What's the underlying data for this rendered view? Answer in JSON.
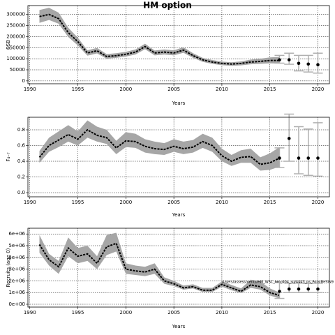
{
  "title": "HM option",
  "chart_data": [
    {
      "type": "line",
      "y_label": "SSB",
      "x_label": "Years",
      "x": [
        1991,
        1992,
        1993,
        1994,
        1995,
        1996,
        1997,
        1998,
        1999,
        2000,
        2001,
        2002,
        2003,
        2004,
        2005,
        2006,
        2007,
        2008,
        2009,
        2010,
        2011,
        2012,
        2013,
        2014,
        2015,
        2016
      ],
      "values": [
        290500,
        300000,
        281000,
        218000,
        177000,
        126000,
        136000,
        110000,
        114000,
        120000,
        130000,
        155000,
        126000,
        130000,
        126000,
        139000,
        114000,
        95000,
        85000,
        79000,
        76000,
        79000,
        85000,
        88000,
        92000,
        92000
      ],
      "lower": [
        262000,
        275000,
        258000,
        198000,
        160000,
        114000,
        124000,
        100000,
        104000,
        110000,
        119000,
        143000,
        115000,
        119000,
        115000,
        127000,
        104000,
        86000,
        77000,
        71000,
        68000,
        70000,
        75000,
        77000,
        79000,
        78000
      ],
      "upper": [
        320000,
        330000,
        308000,
        240000,
        195000,
        138000,
        149000,
        121000,
        125000,
        131000,
        142000,
        168000,
        137000,
        142000,
        138000,
        152000,
        125000,
        104000,
        94000,
        87000,
        84000,
        88000,
        96000,
        100000,
        106000,
        108000
      ],
      "projection_x": [
        2016,
        2017,
        2018,
        2019,
        2020
      ],
      "projection_values": [
        95000,
        95000,
        79000,
        76000,
        73000
      ],
      "projection_lower": [
        80000,
        75000,
        45000,
        40000,
        35000
      ],
      "projection_upper": [
        115000,
        125000,
        115000,
        115000,
        125000
      ],
      "color": "#000000",
      "band_color": "#a6a6a6",
      "error_color": "#b0b0b0",
      "xlim": [
        1989.8,
        2021.2
      ],
      "ylim": [
        -13000,
        340000
      ],
      "xticks": [
        1990,
        1995,
        2000,
        2005,
        2010,
        2015,
        2020
      ],
      "yticks": [
        0,
        50000,
        100000,
        150000,
        200000,
        250000,
        300000
      ],
      "grid": true
    },
    {
      "type": "line",
      "y_label": "F₄₋₇",
      "x_label": "Years",
      "x": [
        1991,
        1992,
        1993,
        1994,
        1995,
        1996,
        1997,
        1998,
        1999,
        2000,
        2001,
        2002,
        2003,
        2004,
        2005,
        2006,
        2007,
        2008,
        2009,
        2010,
        2011,
        2012,
        2013,
        2014,
        2015,
        2016
      ],
      "values": [
        0.45,
        0.6,
        0.67,
        0.74,
        0.68,
        0.8,
        0.73,
        0.7,
        0.57,
        0.66,
        0.65,
        0.59,
        0.56,
        0.55,
        0.59,
        0.56,
        0.58,
        0.65,
        0.6,
        0.47,
        0.4,
        0.45,
        0.46,
        0.36,
        0.38,
        0.44
      ],
      "lower": [
        0.38,
        0.52,
        0.58,
        0.65,
        0.6,
        0.7,
        0.65,
        0.62,
        0.49,
        0.58,
        0.57,
        0.51,
        0.49,
        0.48,
        0.52,
        0.49,
        0.51,
        0.57,
        0.52,
        0.4,
        0.34,
        0.38,
        0.38,
        0.28,
        0.29,
        0.33
      ],
      "upper": [
        0.53,
        0.7,
        0.78,
        0.86,
        0.78,
        0.92,
        0.84,
        0.8,
        0.66,
        0.77,
        0.75,
        0.68,
        0.65,
        0.63,
        0.68,
        0.65,
        0.67,
        0.75,
        0.7,
        0.56,
        0.48,
        0.54,
        0.56,
        0.45,
        0.5,
        0.58
      ],
      "projection_x": [
        2016,
        2017,
        2018,
        2019,
        2020
      ],
      "projection_values": [
        0.44,
        0.69,
        0.44,
        0.44,
        0.44
      ],
      "projection_lower": [
        0.32,
        0.4,
        0.24,
        0.22,
        0.21
      ],
      "projection_upper": [
        0.57,
        1.0,
        0.84,
        0.81,
        0.89
      ],
      "color": "#000000",
      "band_color": "#a6a6a6",
      "error_color": "#b0b0b0",
      "xlim": [
        1989.8,
        2021.2
      ],
      "ylim": [
        -0.053,
        0.96
      ],
      "xticks": [
        1990,
        1995,
        2000,
        2005,
        2010,
        2015,
        2020
      ],
      "yticks": [
        {
          "value": 0,
          "label": "0.0"
        },
        0.2,
        0.4,
        0.6,
        0.8
      ],
      "grid": true
    },
    {
      "type": "line",
      "y_label": "Recruits (age 0)",
      "x_label": "Years",
      "annotation": "/Users/assessments/HM_WSC_hm_004_sq/4443_ps_PolarBeSIN9",
      "x": [
        1991,
        1992,
        1993,
        1994,
        1995,
        1996,
        1997,
        1998,
        1999,
        2000,
        2001,
        2002,
        2003,
        2004,
        2005,
        2006,
        2007,
        2008,
        2009,
        2010,
        2011,
        2012,
        2013,
        2014,
        2015,
        2016
      ],
      "values": [
        5100000,
        3800000,
        3200000,
        4800000,
        4100000,
        4300000,
        3500000,
        4900000,
        5200000,
        3000000,
        2850000,
        2750000,
        3000000,
        2000000,
        1750000,
        1400000,
        1500000,
        1200000,
        1200000,
        1700000,
        1400000,
        1100000,
        1650000,
        1500000,
        1000000,
        750000
      ],
      "lower": [
        4400000,
        3300000,
        2600000,
        4100000,
        3500000,
        3700000,
        3000000,
        4200000,
        4500000,
        2600000,
        2500000,
        2400000,
        2600000,
        1750000,
        1550000,
        1250000,
        1350000,
        1050000,
        1050000,
        1500000,
        1200000,
        950000,
        1400000,
        1250000,
        750000,
        500000
      ],
      "upper": [
        5900000,
        4300000,
        3700000,
        5700000,
        4800000,
        5000000,
        4100000,
        5900000,
        6100000,
        3500000,
        3300000,
        3200000,
        3500000,
        2300000,
        2000000,
        1600000,
        1700000,
        1400000,
        1400000,
        1950000,
        1650000,
        1350000,
        2100000,
        1950000,
        1350000,
        1000000
      ],
      "projection_x": [
        2016,
        2017,
        2018,
        2019,
        2020
      ],
      "projection_values": [
        1100000,
        1300000,
        1300000,
        1300000,
        1300000
      ],
      "projection_lower": [
        500000,
        1000000,
        1000000,
        1000000,
        1000000
      ],
      "projection_upper": [
        1900000,
        1800000,
        1800000,
        1800000,
        1800000
      ],
      "color": "#000000",
      "band_color": "#a6a6a6",
      "error_color": "#b0b0b0",
      "xlim": [
        1989.8,
        2021.2
      ],
      "ylim": [
        -240000,
        6490000
      ],
      "xticks": [
        1990,
        1995,
        2000,
        2005,
        2010,
        2015,
        2020
      ],
      "yticks": [
        {
          "value": 0,
          "label": "0e+00"
        },
        {
          "value": 1000000,
          "label": "1e+06"
        },
        {
          "value": 2000000,
          "label": "2e+06"
        },
        {
          "value": 3000000,
          "label": "3e+06"
        },
        {
          "value": 4000000,
          "label": "4e+06"
        },
        {
          "value": 5000000,
          "label": "5e+06"
        },
        {
          "value": 6000000,
          "label": "6e+06"
        }
      ],
      "grid": true
    }
  ]
}
